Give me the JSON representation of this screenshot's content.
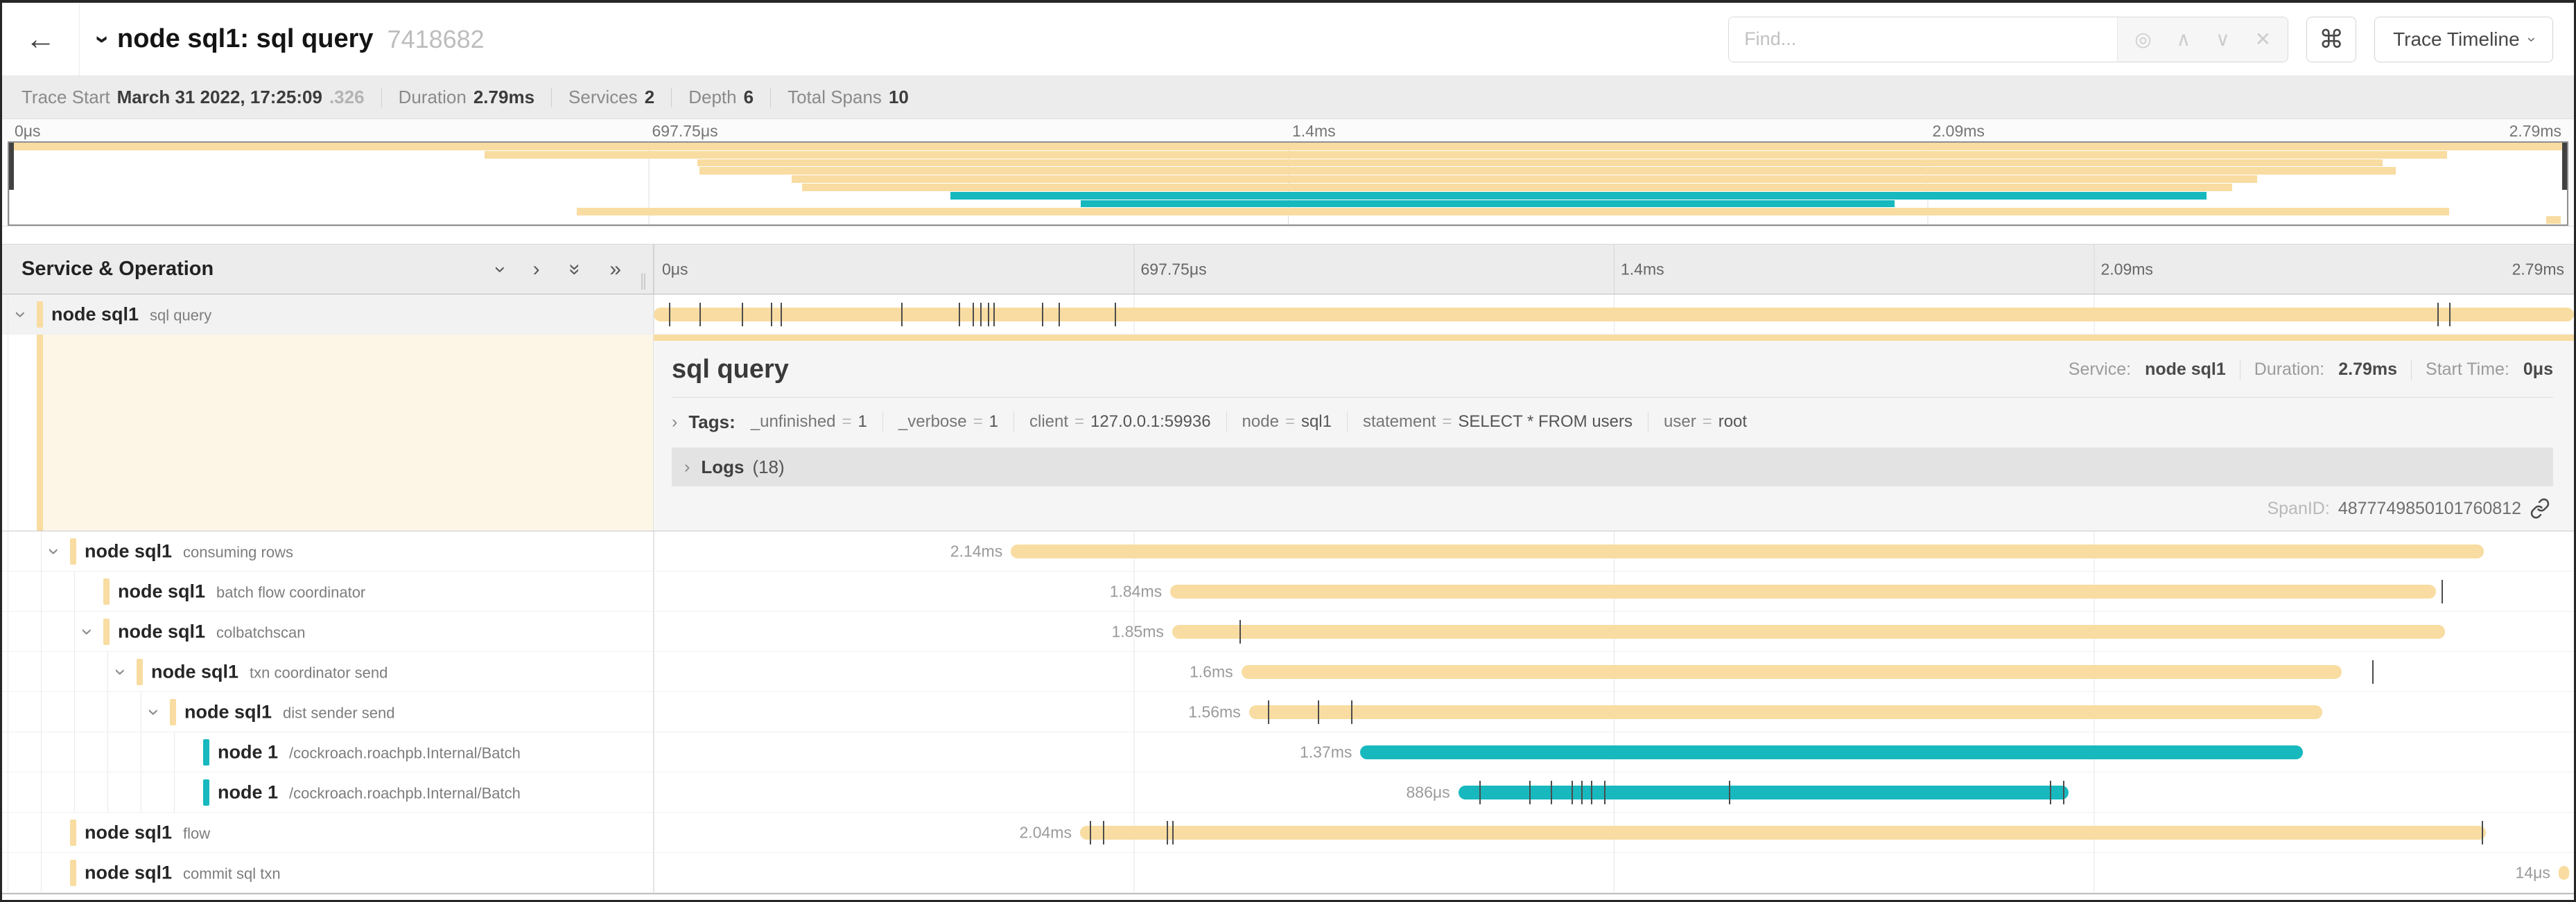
{
  "colors": {
    "tan": "#F8DCA1",
    "teal": "#17B8BE",
    "detail_tint": "rgba(248,220,161,0.26)"
  },
  "header": {
    "back_icon": "←",
    "collapser_icon": "›",
    "title": "node sql1: sql query",
    "trace_id": "7418682",
    "find_placeholder": "Find...",
    "find_icons": {
      "locate": "◎",
      "prev": "∧",
      "next": "∨",
      "clear": "✕"
    },
    "shortcut_icon": "⌘",
    "view_menu_label": "Trace Timeline",
    "view_menu_caret": "›"
  },
  "stats": {
    "trace_start_label": "Trace Start",
    "trace_start_date": "March 31 2022, 17:25:09",
    "trace_start_frac": ".326",
    "duration_label": "Duration",
    "duration": "2.79ms",
    "services_label": "Services",
    "services": "2",
    "depth_label": "Depth",
    "depth": "6",
    "total_spans_label": "Total Spans",
    "total_spans": "10"
  },
  "ruler": {
    "ticks": [
      "0μs",
      "697.75μs",
      "1.4ms",
      "2.09ms",
      "2.79ms"
    ]
  },
  "tree": {
    "header": "Service & Operation",
    "icons": {
      "collapse_one": "›",
      "expand_one": "›",
      "collapse_all": "»",
      "expand_all": "»"
    },
    "grip": "∥"
  },
  "detail": {
    "title": "sql query",
    "service_label": "Service:",
    "service": "node sql1",
    "duration_label": "Duration:",
    "duration": "2.79ms",
    "start_label": "Start Time:",
    "start": "0μs",
    "tags_chevron": "›",
    "tags_label": "Tags:",
    "tags": [
      {
        "key": "_unfinished",
        "value": "1"
      },
      {
        "key": "_verbose",
        "value": "1"
      },
      {
        "key": "client",
        "value": "127.0.0.1:59936"
      },
      {
        "key": "node",
        "value": "sql1"
      },
      {
        "key": "statement",
        "value": "SELECT * FROM users"
      },
      {
        "key": "user",
        "value": "root"
      }
    ],
    "logs_chevron": "›",
    "logs_label": "Logs",
    "logs_count": "(18)",
    "span_id_label": "SpanID:",
    "span_id": "4877749850101760812"
  },
  "spans": [
    {
      "service": "node sql1",
      "operation": "sql query",
      "depth": 0,
      "color": "tan",
      "start": 0,
      "width": 100,
      "duration": "",
      "ticks": [
        0.8,
        2.4,
        4.6,
        6.1,
        6.6,
        12.9,
        15.9,
        16.6,
        17.0,
        17.4,
        17.7,
        20.2,
        21.1,
        24.0,
        92.9,
        93.5
      ],
      "chevron": true,
      "selected": true
    },
    {
      "service": "node sql1",
      "operation": "consuming rows",
      "depth": 1,
      "color": "tan",
      "start": 18.6,
      "width": 76.7,
      "duration": "2.14ms",
      "ticks": [],
      "chevron": true,
      "selected": false
    },
    {
      "service": "node sql1",
      "operation": "batch flow coordinator",
      "depth": 2,
      "color": "tan",
      "start": 26.9,
      "width": 65.9,
      "duration": "1.84ms",
      "ticks": [
        93.1
      ],
      "chevron": false,
      "selected": false
    },
    {
      "service": "node sql1",
      "operation": "colbatchscan",
      "depth": 2,
      "color": "tan",
      "start": 27.0,
      "width": 66.3,
      "duration": "1.85ms",
      "ticks": [
        30.5
      ],
      "chevron": true,
      "selected": false
    },
    {
      "service": "node sql1",
      "operation": "txn coordinator send",
      "depth": 3,
      "color": "tan",
      "start": 30.6,
      "width": 57.3,
      "duration": "1.6ms",
      "ticks": [
        89.5
      ],
      "chevron": true,
      "selected": false
    },
    {
      "service": "node sql1",
      "operation": "dist sender send",
      "depth": 4,
      "color": "tan",
      "start": 31.0,
      "width": 55.9,
      "duration": "1.56ms",
      "ticks": [
        32.0,
        34.6,
        36.3
      ],
      "chevron": true,
      "selected": false
    },
    {
      "service": "node 1",
      "operation": "/cockroach.roachpb.Internal/Batch",
      "depth": 5,
      "color": "teal",
      "start": 36.8,
      "width": 49.1,
      "duration": "1.37ms",
      "ticks": [],
      "chevron": false,
      "selected": false
    },
    {
      "service": "node 1",
      "operation": "/cockroach.roachpb.Internal/Batch",
      "depth": 5,
      "color": "teal",
      "start": 41.9,
      "width": 31.8,
      "duration": "886μs",
      "ticks": [
        43.0,
        45.6,
        46.7,
        47.8,
        48.3,
        48.8,
        49.5,
        56.0,
        72.7,
        73.4
      ],
      "chevron": false,
      "selected": false
    },
    {
      "service": "node sql1",
      "operation": "flow",
      "depth": 1,
      "color": "tan",
      "start": 22.2,
      "width": 73.2,
      "duration": "2.04ms",
      "ticks": [
        22.7,
        23.4,
        26.7,
        27.0,
        95.2
      ],
      "chevron": false,
      "selected": false
    },
    {
      "service": "node sql1",
      "operation": "commit sql txn",
      "depth": 1,
      "color": "tan",
      "start": 99.2,
      "width": 0.55,
      "duration": "14μs",
      "ticks": [],
      "chevron": false,
      "selected": false
    }
  ]
}
